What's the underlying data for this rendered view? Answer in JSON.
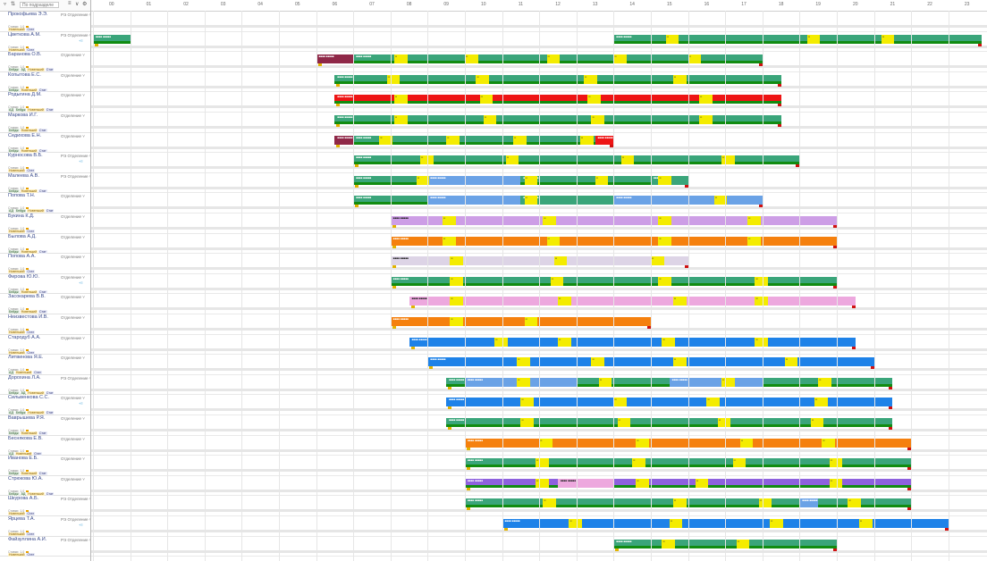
{
  "toolbar": {
    "search_placeholder": "По подразделе",
    "filter_icon": "filter-icon",
    "sort_icon": "sort-icon",
    "settings_icon": "settings-icon"
  },
  "timeline": {
    "hours": [
      "00",
      "01",
      "02",
      "03",
      "04",
      "05",
      "06",
      "07",
      "08",
      "09",
      "10",
      "11",
      "12",
      "13",
      "14",
      "15",
      "16",
      "17",
      "18",
      "19",
      "20",
      "21",
      "22",
      "23"
    ]
  },
  "colors": {
    "green": "#3aa57a",
    "red": "#ee1515",
    "blue": "#1e82e8",
    "lightblue": "#6aa2e6",
    "orange": "#f5800e",
    "lavender": "#cd9ee6",
    "pink": "#eda8de",
    "light": "#ddd4e6",
    "maroon": "#8f2848",
    "purple": "#8e61de",
    "break": "#f4ec00",
    "strip": "#118c11"
  },
  "employees": [
    {
      "name": "Прокофьева Э.Э.",
      "dept": "РЭ Отделение",
      "tags": [
        "Новенький",
        "Стат"
      ],
      "note": "Ставки: 1,0",
      "bars": [],
      "breaks": []
    },
    {
      "name": "Цветкова А.М.",
      "dept": "РЭ Отделение",
      "tags": [
        "Новенький",
        "Стат"
      ],
      "note": "Ставки: 1,0",
      "bars": [
        {
          "start": 0,
          "end": 1,
          "color": "green",
          "strip": true
        },
        {
          "start": 14,
          "end": 23.9,
          "color": "green",
          "strip": true
        }
      ],
      "breaks": [
        15.4,
        19.2,
        21.2
      ]
    },
    {
      "name": "Баранова О.В.",
      "dept": "Отделение",
      "tags": [
        "Бейдж",
        "АД",
        "Новенький",
        "Стат"
      ],
      "note": "Ставки: 1,0",
      "bars": [
        {
          "start": 6,
          "end": 7,
          "color": "maroon",
          "strip": false
        },
        {
          "start": 7,
          "end": 18,
          "color": "green",
          "strip": true
        }
      ],
      "breaks": [
        8.1,
        10,
        12.2,
        14,
        16
      ]
    },
    {
      "name": "Копытова Е.С.",
      "dept": "Отделение",
      "tags": [
        "Бейдж",
        "Новенький",
        "Стат"
      ],
      "note": "Ставки: 1,0",
      "bars": [
        {
          "start": 6.5,
          "end": 18.5,
          "color": "green",
          "strip": true
        }
      ],
      "breaks": [
        7.9,
        10.3,
        13.2,
        15.6
      ]
    },
    {
      "name": "Родыгина Д.М.",
      "dept": "Отделение",
      "tags": [
        "АД",
        "Бейдж",
        "Новенький",
        "Стат"
      ],
      "note": "Ставки: 1,0",
      "bars": [
        {
          "start": 6.5,
          "end": 18.5,
          "color": "red",
          "strip": true
        }
      ],
      "breaks": [
        8.1,
        10.4,
        13.3,
        16.3
      ]
    },
    {
      "name": "Маркова И.Г.",
      "dept": "Отделение",
      "tags": [
        "Бейдж",
        "Новенький",
        "Стат"
      ],
      "note": "Ставки: 1,0",
      "bars": [
        {
          "start": 6.5,
          "end": 18.5,
          "color": "green",
          "strip": true
        }
      ],
      "breaks": [
        8.1,
        10.5,
        13.4,
        16.3
      ]
    },
    {
      "name": "Седихова Е.Н.",
      "dept": "Отделение",
      "tags": [
        "Бейдж",
        "Новенький",
        "Стат"
      ],
      "note": "Ставки: 1,0",
      "bars": [
        {
          "start": 6.5,
          "end": 7,
          "color": "maroon",
          "strip": false
        },
        {
          "start": 7,
          "end": 13.5,
          "color": "green",
          "strip": true
        },
        {
          "start": 13.5,
          "end": 14,
          "color": "red",
          "strip": false
        }
      ],
      "breaks": [
        7.7,
        9.5,
        11.3,
        13.1
      ]
    },
    {
      "name": "Курносова В.Б.",
      "dept": "РЭ Отделение",
      "tags": [
        "Новенький",
        "Стат"
      ],
      "note": "Ставки: 1,0",
      "bars": [
        {
          "start": 7,
          "end": 19,
          "color": "green",
          "strip": true
        }
      ],
      "breaks": [
        8.8,
        11.1,
        14.2,
        16.9
      ]
    },
    {
      "name": "Малеева А.В.",
      "dept": "РЭ Отделение",
      "tags": [
        "Бейдж",
        "Новенький",
        "Стат"
      ],
      "note": "Ставки: 1,0",
      "bars": [
        {
          "start": 7,
          "end": 9,
          "color": "green",
          "strip": true
        },
        {
          "start": 9,
          "end": 11.5,
          "color": "lightblue",
          "strip": false
        },
        {
          "start": 11.5,
          "end": 15,
          "color": "green",
          "strip": true
        },
        {
          "start": 15,
          "end": 16,
          "color": "green",
          "strip": false
        }
      ],
      "breaks": [
        8.7,
        11.6,
        13.5,
        15.2
      ]
    },
    {
      "name": "Попова Т.Н.",
      "dept": "Отделение",
      "tags": [
        "АД",
        "Бейдж",
        "Новенький",
        "Стат"
      ],
      "note": "Ставки: 1,0",
      "bars": [
        {
          "start": 7,
          "end": 9,
          "color": "green",
          "strip": true
        },
        {
          "start": 9,
          "end": 11.5,
          "color": "lightblue",
          "strip": false
        },
        {
          "start": 11.5,
          "end": 14,
          "color": "green",
          "strip": false
        },
        {
          "start": 14,
          "end": 18,
          "color": "lightblue",
          "strip": false
        }
      ],
      "breaks": [
        11.6,
        16.7
      ]
    },
    {
      "name": "Букина К.Д.",
      "dept": "Отделение",
      "tags": [
        "Новенький",
        "Стат"
      ],
      "note": "Ставки: 1,0",
      "bars": [
        {
          "start": 8,
          "end": 20,
          "color": "lavender",
          "strip": false
        }
      ],
      "breaks": [
        9.4,
        12.1,
        15.2,
        17.6
      ]
    },
    {
      "name": "Былова А.Д.",
      "dept": "Отделение",
      "tags": [
        "Бейдж",
        "Новенький",
        "Стат"
      ],
      "note": "Ставки: 1,0",
      "bars": [
        {
          "start": 8,
          "end": 20,
          "color": "orange",
          "strip": false
        }
      ],
      "breaks": [
        9.4,
        12.2,
        15.2,
        17.6
      ]
    },
    {
      "name": "Попова А.А.",
      "dept": "Отделение",
      "tags": [
        "Новенький",
        "Стат"
      ],
      "note": "Ставки: 1,0",
      "bars": [
        {
          "start": 8,
          "end": 16,
          "color": "light",
          "strip": false
        }
      ],
      "breaks": [
        9.6,
        12.4,
        15
      ]
    },
    {
      "name": "Фирова Ю.Ю.",
      "dept": "Отделение",
      "tags": [
        "Бейдж",
        "Новенький",
        "Стат"
      ],
      "note": "Ставки: 1,0",
      "bars": [
        {
          "start": 8,
          "end": 20,
          "color": "green",
          "strip": true
        }
      ],
      "breaks": [
        9.6,
        12.3,
        15.2,
        17.8
      ]
    },
    {
      "name": "Засокарева В.В.",
      "dept": "Отделение",
      "tags": [
        "Бейдж",
        "Новенький",
        "Стат"
      ],
      "note": "Ставки: 1,0",
      "bars": [
        {
          "start": 8.5,
          "end": 20.5,
          "color": "pink",
          "strip": false
        }
      ],
      "breaks": [
        9.6,
        12.5,
        15.6,
        17.8
      ]
    },
    {
      "name": "Неизвестова И.В.",
      "dept": "Отделение",
      "tags": [
        "Новенький",
        "Стат"
      ],
      "note": "Ставки: 1,0",
      "bars": [
        {
          "start": 8,
          "end": 15,
          "color": "orange",
          "strip": false
        }
      ],
      "breaks": [
        9.6,
        11.6
      ]
    },
    {
      "name": "Стародуб А.А.",
      "dept": "Отделение",
      "tags": [
        "Новенький",
        "Стат"
      ],
      "note": "Ставки: 1,0",
      "bars": [
        {
          "start": 8.5,
          "end": 20.5,
          "color": "blue",
          "strip": false
        }
      ],
      "breaks": [
        10.8,
        12.5,
        15.3,
        17.8
      ]
    },
    {
      "name": "Литвинова Я.Е.",
      "dept": "Отделение",
      "tags": [
        "АД",
        "Новенький",
        "Стат"
      ],
      "note": "Ставки: 1,0",
      "bars": [
        {
          "start": 9,
          "end": 21,
          "color": "blue",
          "strip": false
        }
      ],
      "breaks": [
        11.4,
        13.4,
        15.6,
        18.6
      ]
    },
    {
      "name": "Дорохина Л.А.",
      "dept": "РЭ Отделение",
      "tags": [
        "Бейдж",
        "АД",
        "Новенький",
        "Стат"
      ],
      "note": "Ставки: 1,0",
      "bars": [
        {
          "start": 9.5,
          "end": 21.5,
          "color": "green",
          "strip": true
        },
        {
          "start": 10,
          "end": 13,
          "color": "lightblue",
          "strip": false
        },
        {
          "start": 15.5,
          "end": 18,
          "color": "lightblue",
          "strip": false
        }
      ],
      "breaks": [
        11.4,
        13.6,
        16.9,
        19.5
      ]
    },
    {
      "name": "Сильвенкова С.С.",
      "dept": "Отделение",
      "tags": [
        "АД",
        "Бейдж",
        "Новенький",
        "Стат"
      ],
      "note": "Ставки: 1,0",
      "bars": [
        {
          "start": 9.5,
          "end": 21.5,
          "color": "blue",
          "strip": false
        }
      ],
      "breaks": [
        11.5,
        14,
        16.5,
        19.4
      ]
    },
    {
      "name": "Ваврышева Р.Я.",
      "dept": "Отделение",
      "tags": [
        "Бейдж",
        "Новенький",
        "Стат"
      ],
      "note": "Ставки: 1,0",
      "bars": [
        {
          "start": 9.5,
          "end": 21.5,
          "color": "green",
          "strip": true
        }
      ],
      "breaks": [
        11.5,
        14.1,
        16.8,
        19.3
      ]
    },
    {
      "name": "Беснякова Е.В.",
      "dept": "Отделение",
      "tags": [
        "АД",
        "Новенький",
        "Стат"
      ],
      "note": "Ставки: 1,0",
      "bars": [
        {
          "start": 10,
          "end": 22,
          "color": "orange",
          "strip": false
        }
      ],
      "breaks": [
        12,
        14.6,
        17.4,
        19.6
      ]
    },
    {
      "name": "Иванова Е.Б.",
      "dept": "Отделение",
      "tags": [
        "Бейдж",
        "Новенький",
        "Стат"
      ],
      "note": "Ставки: 1,0",
      "bars": [
        {
          "start": 10,
          "end": 22,
          "color": "green",
          "strip": true
        }
      ],
      "breaks": [
        11.9,
        14.5,
        17.2,
        19.8
      ]
    },
    {
      "name": "Стрюкова Ю.А.",
      "dept": "Отделение",
      "tags": [
        "Бейдж",
        "АД",
        "Новенький",
        "Стат"
      ],
      "note": "Ставки: 1,0",
      "bars": [
        {
          "start": 10,
          "end": 22,
          "color": "purple",
          "strip": true
        },
        {
          "start": 12.5,
          "end": 14,
          "color": "pink",
          "strip": false
        }
      ],
      "breaks": [
        11.9,
        14.6,
        16.2,
        19.8
      ]
    },
    {
      "name": "Шкурова А.Б.",
      "dept": "РЭ Отделение",
      "tags": [
        "Новенький",
        "Стат"
      ],
      "note": "Ставки: 1,0",
      "bars": [
        {
          "start": 10,
          "end": 22,
          "color": "green",
          "strip": true
        },
        {
          "start": 19,
          "end": 19.5,
          "color": "lightblue",
          "strip": false
        }
      ],
      "breaks": [
        12.1,
        15.6,
        17.9,
        20.3
      ]
    },
    {
      "name": "Ярцева Т.А.",
      "dept": "РЭ Отделение",
      "tags": [
        "Новенький",
        "Стат"
      ],
      "note": "Ставки: 1,0",
      "bars": [
        {
          "start": 11,
          "end": 23,
          "color": "blue",
          "strip": false
        }
      ],
      "breaks": [
        12.8,
        15.5,
        18.2,
        20.6
      ]
    },
    {
      "name": "Файзуллина А.И.",
      "dept": "РЭ Отделение",
      "tags": [
        "Новенький",
        "Стат"
      ],
      "note": "Ставки: 1,0",
      "bars": [
        {
          "start": 14,
          "end": 20,
          "color": "green",
          "strip": true
        }
      ],
      "breaks": [
        15.3,
        17.3
      ]
    }
  ]
}
